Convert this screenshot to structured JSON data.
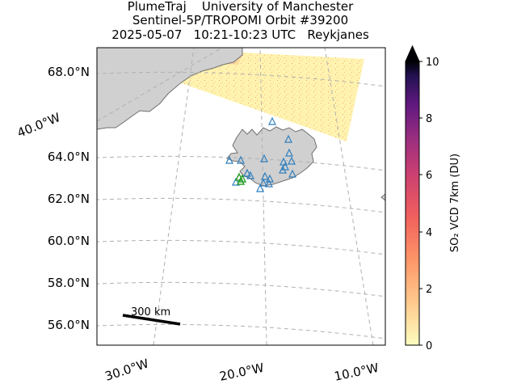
{
  "title": {
    "line1": "PlumeTraj    University of Manchester",
    "line2": "Sentinel-5P/TROPOMI Orbit #39200",
    "line3": "2025-05-07   10:21-10:23 UTC   Reykjanes"
  },
  "map": {
    "lat_labels": [
      "68.0°N",
      "64.0°N",
      "62.0°N",
      "60.0°N",
      "58.0°N",
      "56.0°N"
    ],
    "lon_labels_bottom": [
      "30.0°W",
      "20.0°W",
      "10.0°W"
    ],
    "lon_label_left": "40.0°W",
    "gridlines": "dashed",
    "scale_bar_label": "300 km",
    "colors": {
      "land": "#d0d0d0",
      "coast": "#707070",
      "swath_low": "#fff6b8",
      "volcano_marker": "#2e7fbf",
      "active_volcano_marker": "#2ca02c"
    },
    "volcano_marker_icon": "triangle-outline-icon"
  },
  "colorbar": {
    "label": "SO₂ VCD 7km (DU)",
    "ticks": [
      "0",
      "2",
      "4",
      "6",
      "8",
      "10"
    ],
    "min": 0,
    "max": 10,
    "extend": "max",
    "colormap": "magma_r"
  }
}
